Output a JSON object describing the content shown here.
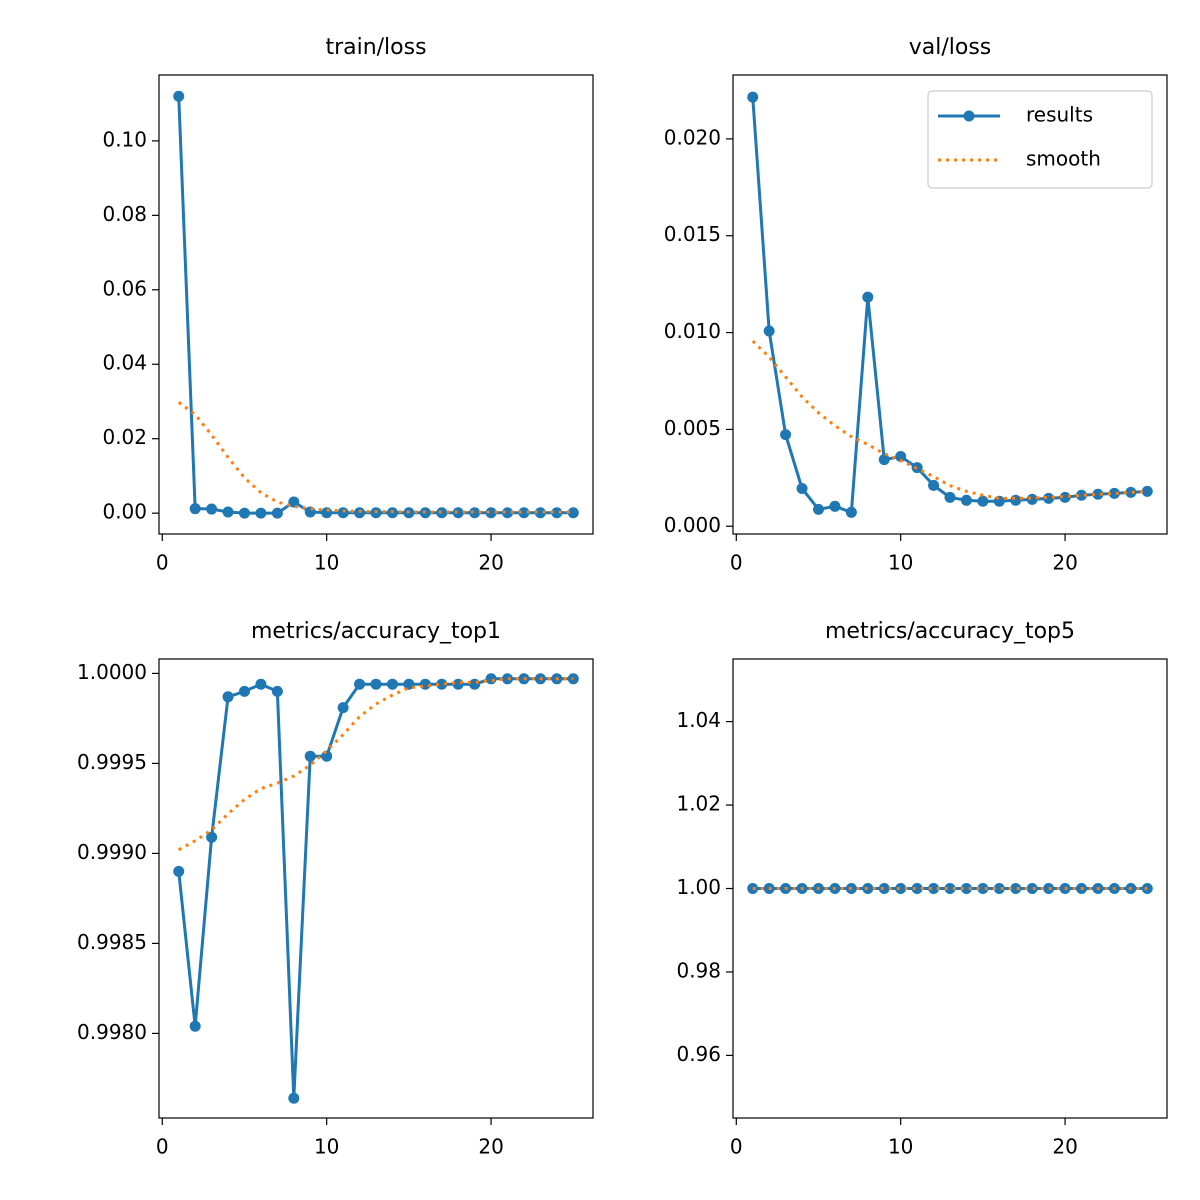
{
  "chart_data": [
    {
      "type": "line",
      "title": "train/loss",
      "x": [
        1,
        2,
        3,
        4,
        5,
        6,
        7,
        8,
        9,
        10,
        11,
        12,
        13,
        14,
        15,
        16,
        17,
        18,
        19,
        20,
        21,
        22,
        23,
        24,
        25
      ],
      "series": [
        {
          "name": "results",
          "color": "#1f77b4",
          "marker": "o",
          "linestyle": "solid",
          "values": [
            0.112,
            0.0012,
            0.0011,
            0.0003,
            0,
            0,
            0,
            0.003,
            0.0003,
            0.0001,
            0.0001,
            0.0001,
            0.0001,
            0.0001,
            0.0001,
            0.0001,
            0.0001,
            0.0001,
            0.0001,
            0.0001,
            0.0001,
            0.0001,
            0.0001,
            0.0001,
            0.0001
          ]
        },
        {
          "name": "smooth",
          "color": "#ff7f0e",
          "linestyle": "dotted",
          "values": [
            0.0298,
            0.0265,
            0.021,
            0.015,
            0.0095,
            0.0055,
            0.003,
            0.0018,
            0.0012,
            0.0008,
            0.0006,
            0.0005,
            0.0004,
            0.0004,
            0.0003,
            0.0003,
            0.0003,
            0.0003,
            0.0003,
            0.0003,
            0.0003,
            0.0003,
            0.0003,
            0.0003,
            0.0003
          ]
        }
      ],
      "xlim": [
        -0.2,
        26.2
      ],
      "ylim": [
        -0.0056,
        0.1177
      ],
      "xticks": [
        0,
        10,
        20
      ],
      "yticks": [
        {
          "value": 0,
          "label": "0.00"
        },
        {
          "value": 0.02,
          "label": "0.02"
        },
        {
          "value": 0.04,
          "label": "0.04"
        },
        {
          "value": 0.06,
          "label": "0.06"
        },
        {
          "value": 0.08,
          "label": "0.08"
        },
        {
          "value": 0.1,
          "label": "0.10"
        }
      ]
    },
    {
      "type": "line",
      "title": "val/loss",
      "legend": "upper right",
      "x": [
        1,
        2,
        3,
        4,
        5,
        6,
        7,
        8,
        9,
        10,
        11,
        12,
        13,
        14,
        15,
        16,
        17,
        18,
        19,
        20,
        21,
        22,
        23,
        24,
        25
      ],
      "series": [
        {
          "name": "results",
          "color": "#1f77b4",
          "marker": "o",
          "linestyle": "solid",
          "values": [
            0.02216,
            0.01008,
            0.00473,
            0.00195,
            0.00087,
            0.00103,
            0.00072,
            0.01183,
            0.00344,
            0.0036,
            0.00303,
            0.00211,
            0.00149,
            0.00134,
            0.00129,
            0.00129,
            0.00134,
            0.00139,
            0.00144,
            0.00149,
            0.0016,
            0.00165,
            0.0017,
            0.00175,
            0.0018
          ]
        },
        {
          "name": "smooth",
          "color": "#ff7f0e",
          "linestyle": "dotted",
          "values": [
            0.00956,
            0.00874,
            0.00771,
            0.00668,
            0.00586,
            0.00519,
            0.00463,
            0.00422,
            0.00375,
            0.0034,
            0.00298,
            0.00257,
            0.0021,
            0.0018,
            0.0016,
            0.00144,
            0.00144,
            0.00146,
            0.00149,
            0.00154,
            0.0016,
            0.00165,
            0.0017,
            0.00175,
            0.0018
          ]
        }
      ],
      "xlim": [
        -0.2,
        26.2
      ],
      "ylim": [
        -0.0004,
        0.0233
      ],
      "xticks": [
        0,
        10,
        20
      ],
      "yticks": [
        {
          "value": 0,
          "label": "0.000"
        },
        0.005,
        {
          "value": 0.01,
          "label": "0.010"
        },
        0.015,
        {
          "value": 0.02,
          "label": "0.020"
        }
      ]
    },
    {
      "type": "line",
      "title": "metrics/accuracy_top1",
      "x": [
        1,
        2,
        3,
        4,
        5,
        6,
        7,
        8,
        9,
        10,
        11,
        12,
        13,
        14,
        15,
        16,
        17,
        18,
        19,
        20,
        21,
        22,
        23,
        24,
        25
      ],
      "series": [
        {
          "name": "results",
          "color": "#1f77b4",
          "marker": "o",
          "linestyle": "solid",
          "values": [
            0.9989,
            0.99804,
            0.99909,
            0.99987,
            0.9999,
            0.99994,
            0.9999,
            0.99764,
            0.99954,
            0.99954,
            0.99981,
            0.99994,
            0.99994,
            0.99994,
            0.99994,
            0.99994,
            0.99994,
            0.99994,
            0.99994,
            0.99997,
            0.99997,
            0.99997,
            0.99997,
            0.99997,
            0.99997
          ]
        },
        {
          "name": "smooth",
          "color": "#ff7f0e",
          "linestyle": "dotted",
          "values": [
            0.99902,
            0.99907,
            0.99913,
            0.99922,
            0.9993,
            0.99936,
            0.99939,
            0.99943,
            0.99949,
            0.99957,
            0.99966,
            0.99976,
            0.99983,
            0.99988,
            0.99992,
            0.99993,
            0.99994,
            0.99995,
            0.99995,
            0.99996,
            0.99997,
            0.99997,
            0.99997,
            0.99997,
            0.99997
          ]
        }
      ],
      "xlim": [
        -0.2,
        26.2
      ],
      "ylim": [
        0.99753,
        1.00008
      ],
      "xticks": [
        0,
        10,
        20
      ],
      "yticks": [
        {
          "value": 0.998,
          "label": "0.9980"
        },
        0.9985,
        {
          "value": 0.999,
          "label": "0.9990"
        },
        0.9995,
        {
          "value": 1,
          "label": "1.0000"
        }
      ]
    },
    {
      "type": "line",
      "title": "metrics/accuracy_top5",
      "x": [
        1,
        2,
        3,
        4,
        5,
        6,
        7,
        8,
        9,
        10,
        11,
        12,
        13,
        14,
        15,
        16,
        17,
        18,
        19,
        20,
        21,
        22,
        23,
        24,
        25
      ],
      "series": [
        {
          "name": "results",
          "color": "#1f77b4",
          "marker": "o",
          "linestyle": "solid",
          "values": [
            1,
            1,
            1,
            1,
            1,
            1,
            1,
            1,
            1,
            1,
            1,
            1,
            1,
            1,
            1,
            1,
            1,
            1,
            1,
            1,
            1,
            1,
            1,
            1,
            1
          ]
        },
        {
          "name": "smooth",
          "color": "#ff7f0e",
          "linestyle": "dotted",
          "values": [
            1,
            1,
            1,
            1,
            1,
            1,
            1,
            1,
            1,
            1,
            1,
            1,
            1,
            1,
            1,
            1,
            1,
            1,
            1,
            1,
            1,
            1,
            1,
            1,
            1
          ]
        }
      ],
      "xlim": [
        -0.2,
        26.2
      ],
      "ylim": [
        0.945,
        1.055
      ],
      "xticks": [
        0,
        10,
        20
      ],
      "yticks": [
        0.96,
        0.98,
        {
          "value": 1,
          "label": "1.00"
        },
        1.02,
        1.04
      ]
    }
  ]
}
